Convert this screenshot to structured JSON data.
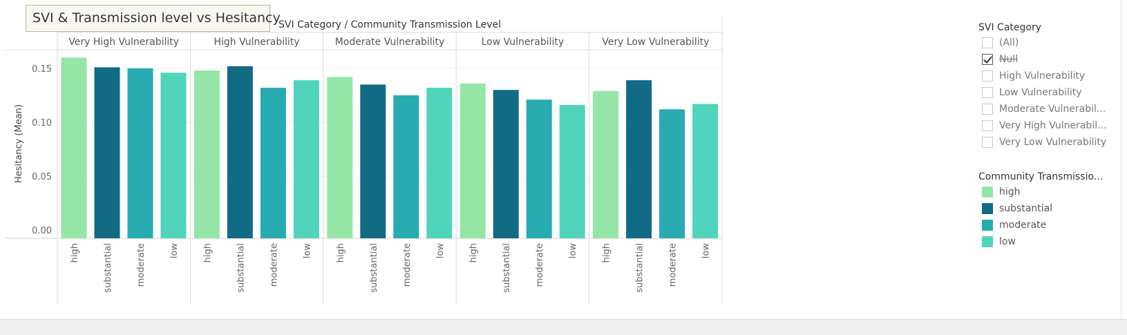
{
  "title": "SVI & Transmission level vs Hesitancy",
  "colors": {
    "high": "#94e5a6",
    "substantial": "#126b85",
    "moderate": "#27aab0",
    "low": "#50d4bc"
  },
  "chart_data": {
    "type": "bar",
    "title": "SVI & Transmission level vs Hesitancy",
    "column_header_title": "SVI Category / Community Transmission Level",
    "ylabel": "Hesitancy (Mean)",
    "ylim": [
      0,
      0.16
    ],
    "yticks": [
      "0.00",
      "0.05",
      "0.10",
      "0.15"
    ],
    "ytick_values": [
      0,
      0.05,
      0.1,
      0.15
    ],
    "grid": true,
    "panels": [
      "Very High Vulnerability",
      "High Vulnerability",
      "Moderate Vulnerability",
      "Low Vulnerability",
      "Very Low Vulnerability"
    ],
    "categories": [
      "high",
      "substantial",
      "moderate",
      "low"
    ],
    "values": [
      [
        0.16,
        0.151,
        0.15,
        0.146
      ],
      [
        0.148,
        0.152,
        0.132,
        0.139
      ],
      [
        0.142,
        0.135,
        0.125,
        0.132
      ],
      [
        0.136,
        0.13,
        0.121,
        0.116
      ],
      [
        0.129,
        0.139,
        0.112,
        0.117
      ]
    ]
  },
  "filter": {
    "title": "SVI Category",
    "items": [
      {
        "label": "(All)",
        "checked": false,
        "strike": false
      },
      {
        "label": "Null",
        "checked": true,
        "strike": true
      },
      {
        "label": "High Vulnerability",
        "checked": false,
        "strike": false
      },
      {
        "label": "Low Vulnerability",
        "checked": false,
        "strike": false
      },
      {
        "label": "Moderate Vulnerabil...",
        "checked": false,
        "strike": false
      },
      {
        "label": "Very High Vulnerabil...",
        "checked": false,
        "strike": false
      },
      {
        "label": "Very Low Vulnerability",
        "checked": false,
        "strike": false
      }
    ]
  },
  "legend": {
    "title": "Community Transmissio...",
    "items": [
      {
        "label": "high",
        "color": "#94e5a6"
      },
      {
        "label": "substantial",
        "color": "#126b85"
      },
      {
        "label": "moderate",
        "color": "#27aab0"
      },
      {
        "label": "low",
        "color": "#50d4bc"
      }
    ]
  }
}
